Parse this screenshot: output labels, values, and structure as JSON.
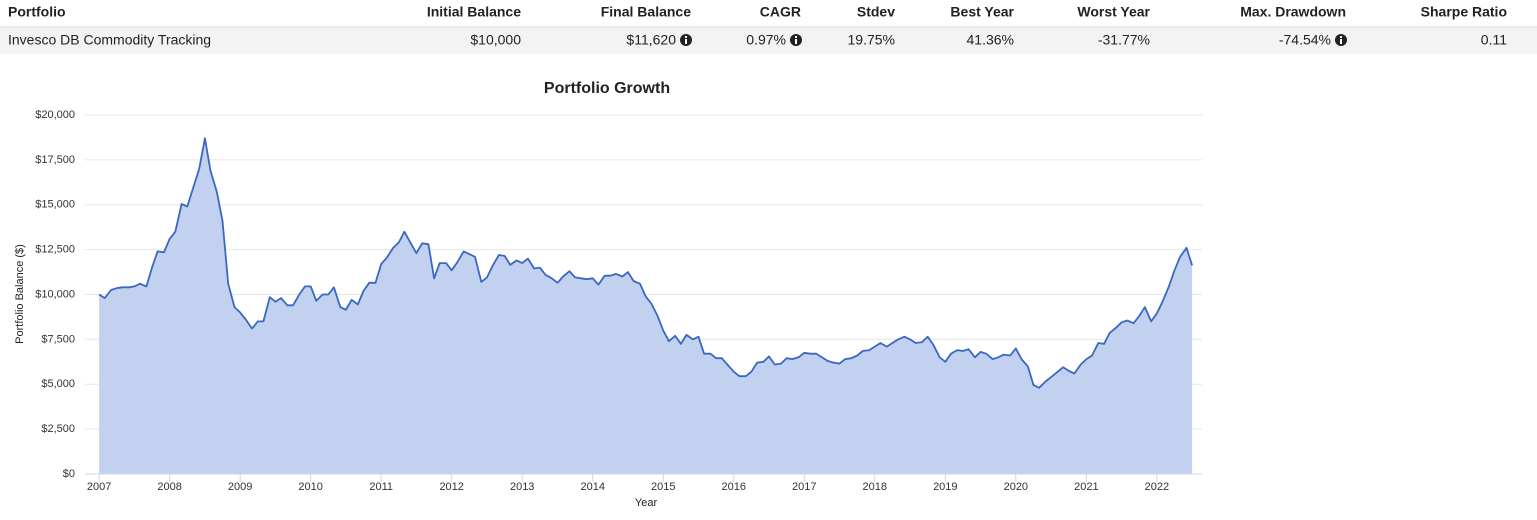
{
  "table": {
    "columns": [
      "Portfolio",
      "Initial Balance",
      "Final Balance",
      "CAGR",
      "Stdev",
      "Best Year",
      "Worst Year",
      "Max. Drawdown",
      "Sharpe Ratio"
    ],
    "rows": [
      [
        "Invesco DB Commodity Tracking",
        "$10,000",
        "$11,620",
        "0.97%",
        "19.75%",
        "41.36%",
        "-31.77%",
        "-74.54%",
        "0.11"
      ]
    ]
  },
  "chart_data": {
    "type": "area",
    "title": "Portfolio Growth",
    "x_label": "Year",
    "y_label": "Portfolio Balance ($)",
    "x": [
      2007,
      2007.08,
      2007.17,
      2007.25,
      2007.33,
      2007.42,
      2007.5,
      2007.58,
      2007.67,
      2007.75,
      2007.83,
      2007.92,
      2008,
      2008.08,
      2008.17,
      2008.25,
      2008.33,
      2008.42,
      2008.5,
      2008.58,
      2008.67,
      2008.75,
      2008.83,
      2008.92,
      2009,
      2009.08,
      2009.17,
      2009.25,
      2009.33,
      2009.42,
      2009.5,
      2009.58,
      2009.67,
      2009.75,
      2009.83,
      2009.92,
      2010,
      2010.08,
      2010.17,
      2010.25,
      2010.33,
      2010.42,
      2010.5,
      2010.58,
      2010.67,
      2010.75,
      2010.83,
      2010.92,
      2011,
      2011.08,
      2011.17,
      2011.25,
      2011.33,
      2011.42,
      2011.5,
      2011.58,
      2011.67,
      2011.75,
      2011.83,
      2011.92,
      2012,
      2012.08,
      2012.17,
      2012.25,
      2012.33,
      2012.42,
      2012.5,
      2012.58,
      2012.67,
      2012.75,
      2012.83,
      2012.92,
      2013,
      2013.08,
      2013.17,
      2013.25,
      2013.33,
      2013.42,
      2013.5,
      2013.58,
      2013.67,
      2013.75,
      2013.83,
      2013.92,
      2014,
      2014.08,
      2014.17,
      2014.25,
      2014.33,
      2014.42,
      2014.5,
      2014.58,
      2014.67,
      2014.75,
      2014.83,
      2014.92,
      2015,
      2015.08,
      2015.17,
      2015.25,
      2015.33,
      2015.42,
      2015.5,
      2015.58,
      2015.67,
      2015.75,
      2015.83,
      2015.92,
      2016,
      2016.08,
      2016.17,
      2016.25,
      2016.33,
      2016.42,
      2016.5,
      2016.58,
      2016.67,
      2016.75,
      2016.83,
      2016.92,
      2017,
      2017.08,
      2017.17,
      2017.25,
      2017.33,
      2017.42,
      2017.5,
      2017.58,
      2017.67,
      2017.75,
      2017.83,
      2017.92,
      2018,
      2018.08,
      2018.17,
      2018.25,
      2018.33,
      2018.42,
      2018.5,
      2018.58,
      2018.67,
      2018.75,
      2018.83,
      2018.92,
      2019,
      2019.08,
      2019.17,
      2019.25,
      2019.33,
      2019.42,
      2019.5,
      2019.58,
      2019.67,
      2019.75,
      2019.83,
      2019.92,
      2020,
      2020.08,
      2020.17,
      2020.25,
      2020.33,
      2020.42,
      2020.5,
      2020.58,
      2020.67,
      2020.75,
      2020.83,
      2020.92,
      2021,
      2021.08,
      2021.17,
      2021.25,
      2021.33,
      2021.42,
      2021.5,
      2021.58,
      2021.67,
      2021.75,
      2021.83,
      2021.92,
      2022,
      2022.08,
      2022.17,
      2022.25,
      2022.33,
      2022.42,
      2022.5
    ],
    "series": [
      {
        "color": "#3a68c0",
        "fill_color": "#c1d1ef",
        "values": [
          10000,
          9800,
          10250,
          10350,
          10400,
          10400,
          10450,
          10600,
          10450,
          11500,
          12400,
          12350,
          13100,
          13500,
          15050,
          14900,
          15900,
          17000,
          18700,
          16900,
          15700,
          14100,
          10600,
          9300,
          9000,
          8600,
          8100,
          8500,
          8500,
          9850,
          9600,
          9800,
          9400,
          9400,
          9950,
          10450,
          10450,
          9650,
          10000,
          10000,
          10400,
          9300,
          9150,
          9700,
          9450,
          10200,
          10650,
          10650,
          11700,
          12050,
          12600,
          12900,
          13500,
          12850,
          12300,
          12850,
          12800,
          10900,
          11750,
          11750,
          11350,
          11800,
          12400,
          12250,
          12100,
          10700,
          10950,
          11600,
          12200,
          12150,
          11650,
          11900,
          11750,
          12000,
          11450,
          11500,
          11100,
          10900,
          10650,
          11000,
          11300,
          10950,
          10900,
          10850,
          10900,
          10550,
          11050,
          11050,
          11150,
          11000,
          11250,
          10750,
          10600,
          9900,
          9500,
          8800,
          8000,
          7400,
          7700,
          7250,
          7750,
          7500,
          7650,
          6700,
          6700,
          6450,
          6450,
          6050,
          5700,
          5450,
          5450,
          5700,
          6200,
          6250,
          6550,
          6100,
          6150,
          6450,
          6400,
          6500,
          6750,
          6700,
          6700,
          6500,
          6300,
          6200,
          6150,
          6400,
          6450,
          6600,
          6850,
          6900,
          7100,
          7300,
          7100,
          7300,
          7500,
          7650,
          7500,
          7300,
          7350,
          7650,
          7200,
          6500,
          6250,
          6700,
          6900,
          6850,
          6950,
          6500,
          6800,
          6700,
          6400,
          6500,
          6650,
          6600,
          7000,
          6400,
          6000,
          4950,
          4800,
          5150,
          5400,
          5650,
          5950,
          5750,
          5600,
          6100,
          6400,
          6600,
          7300,
          7250,
          7850,
          8150,
          8450,
          8550,
          8400,
          8800,
          9300,
          8500,
          8950,
          9600,
          10450,
          11350,
          12100,
          12600,
          11620
        ]
      }
    ],
    "xlim": [
      2006.8,
      2022.64
    ],
    "xticks": [
      2007,
      2008,
      2009,
      2010,
      2011,
      2012,
      2013,
      2014,
      2015,
      2016,
      2017,
      2018,
      2019,
      2020,
      2021,
      2022
    ],
    "ylim": [
      0,
      20000
    ],
    "yticks": [
      {
        "value": 0,
        "label": "$0"
      },
      {
        "value": 2500,
        "label": "$2,500"
      },
      {
        "value": 5000,
        "label": "$5,000"
      },
      {
        "value": 7500,
        "label": "$7,500"
      },
      {
        "value": 10000,
        "label": "$10,000"
      },
      {
        "value": 12500,
        "label": "$12,500"
      },
      {
        "value": 15000,
        "label": "$15,000"
      },
      {
        "value": 17500,
        "label": "$17,500"
      },
      {
        "value": 20000,
        "label": "$20,000"
      }
    ],
    "grid": true
  }
}
